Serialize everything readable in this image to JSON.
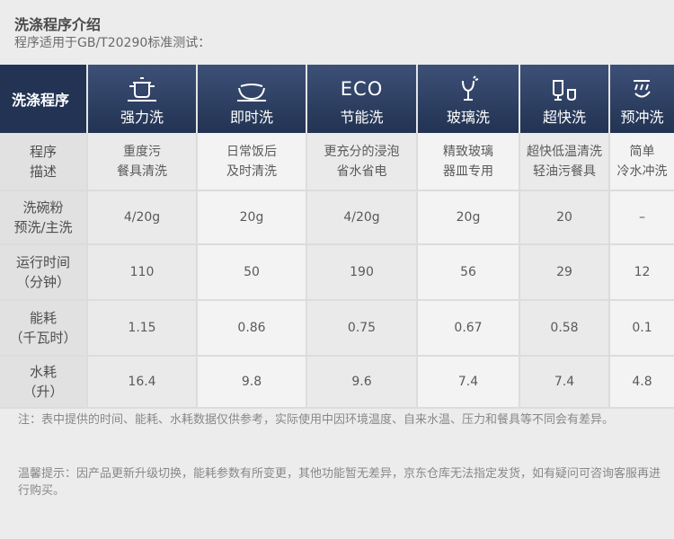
{
  "title": "洗涤程序介绍",
  "subtitle": "程序适用于GB/T20290标准测试：",
  "header": {
    "label": "洗涤程序",
    "programs": [
      {
        "icon": "pot-icon",
        "label": "强力洗"
      },
      {
        "icon": "bowl-icon",
        "label": "即时洗"
      },
      {
        "icon_text": "ECO",
        "label": "节能洗"
      },
      {
        "icon": "wine-glass-icon",
        "label": "玻璃洗"
      },
      {
        "icon": "glasses-icon",
        "label": "超快洗"
      },
      {
        "icon": "rinse-icon",
        "label": "预冲洗"
      }
    ]
  },
  "rows": [
    {
      "label_line1": "程序",
      "label_line2": "描述",
      "cells": [
        {
          "l1": "重度污",
          "l2": "餐具清洗"
        },
        {
          "l1": "日常饭后",
          "l2": "及时清洗"
        },
        {
          "l1": "更充分的浸泡",
          "l2": "省水省电"
        },
        {
          "l1": "精致玻璃",
          "l2": "器皿专用"
        },
        {
          "l1": "超快低温清洗",
          "l2": "轻油污餐具"
        },
        {
          "l1": "简单",
          "l2": "冷水冲洗"
        }
      ]
    },
    {
      "label_line1": "洗碗粉",
      "label_line2": "预洗/主洗",
      "values": [
        "4/20g",
        "20g",
        "4/20g",
        "20g",
        "20",
        "–"
      ]
    },
    {
      "label_line1": "运行时间",
      "label_line2": "（分钟）",
      "values": [
        "110",
        "50",
        "190",
        "56",
        "29",
        "12"
      ]
    },
    {
      "label_line1": "能耗",
      "label_line2": "（千瓦时）",
      "values": [
        "1.15",
        "0.86",
        "0.75",
        "0.67",
        "0.58",
        "0.1"
      ]
    },
    {
      "label_line1": "水耗",
      "label_line2": "（升）",
      "values": [
        "16.4",
        "9.8",
        "9.6",
        "7.4",
        "7.4",
        "4.8"
      ]
    }
  ],
  "notes": {
    "note1": "注：表中提供的时间、能耗、水耗数据仅供参考，实际使用中因环境温度、自来水温、压力和餐具等不同会有差异。",
    "note2": "温馨提示：因产品更新升级切换，能耗参数有所变更，其他功能暂无差异，京东仓库无法指定发货，如有疑问可咨询客服再进行购买。"
  }
}
